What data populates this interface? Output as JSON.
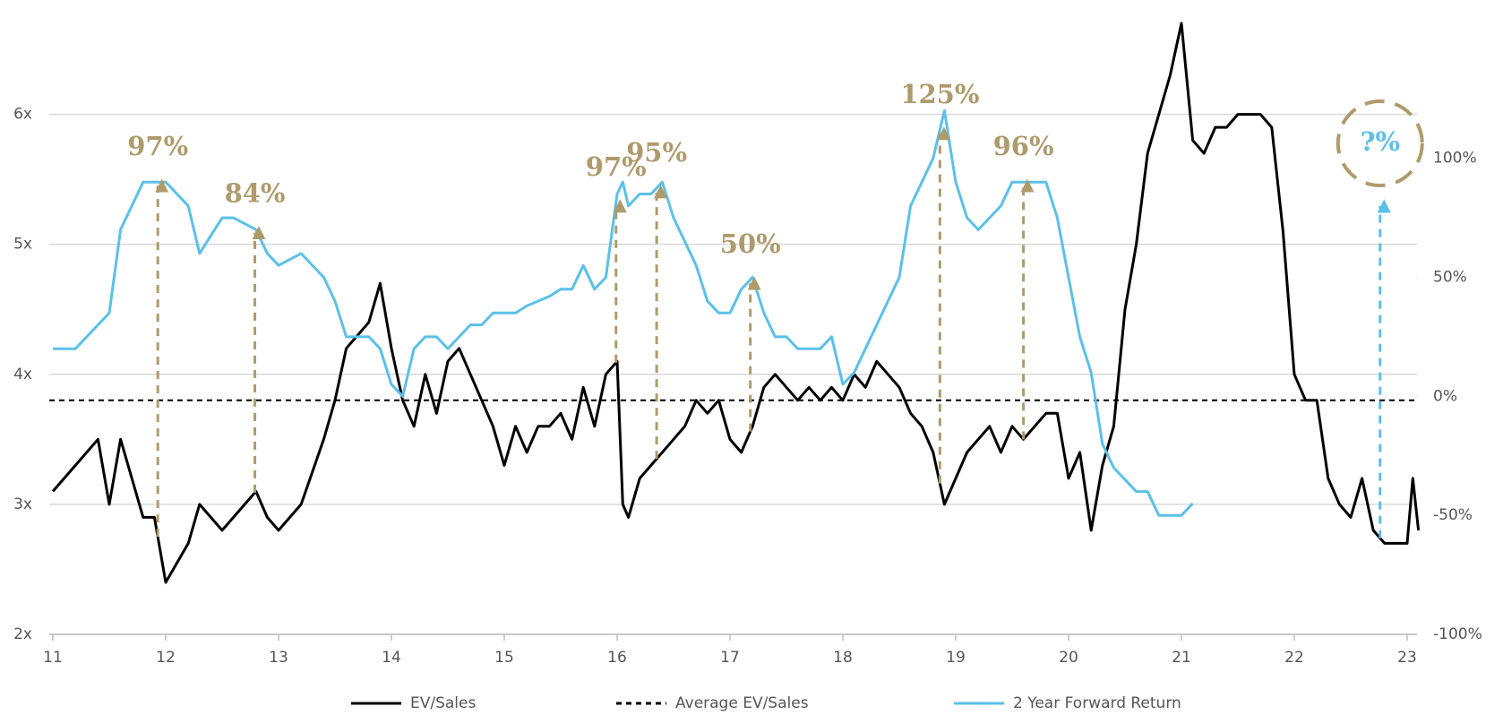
{
  "chart_data": {
    "type": "line",
    "x": [
      11.0,
      11.2,
      11.4,
      11.5,
      11.6,
      11.8,
      11.9,
      12.0,
      12.2,
      12.3,
      12.5,
      12.6,
      12.8,
      12.9,
      13.0,
      13.2,
      13.4,
      13.5,
      13.6,
      13.8,
      13.9,
      14.0,
      14.1,
      14.2,
      14.3,
      14.4,
      14.5,
      14.6,
      14.7,
      14.8,
      14.9,
      15.0,
      15.1,
      15.2,
      15.3,
      15.4,
      15.5,
      15.6,
      15.7,
      15.8,
      15.9,
      16.0,
      16.05,
      16.1,
      16.2,
      16.3,
      16.4,
      16.5,
      16.6,
      16.7,
      16.8,
      16.9,
      17.0,
      17.1,
      17.2,
      17.3,
      17.4,
      17.5,
      17.6,
      17.7,
      17.8,
      17.9,
      18.0,
      18.1,
      18.2,
      18.3,
      18.4,
      18.5,
      18.6,
      18.7,
      18.8,
      18.9,
      19.0,
      19.1,
      19.2,
      19.3,
      19.4,
      19.5,
      19.6,
      19.7,
      19.8,
      19.9,
      20.0,
      20.1,
      20.2,
      20.3,
      20.4,
      20.5,
      20.6,
      20.7,
      20.8,
      20.9,
      21.0,
      21.1,
      21.2,
      21.3,
      21.4,
      21.5,
      21.6,
      21.7,
      21.8,
      21.9,
      22.0,
      22.1,
      22.2,
      22.3,
      22.4,
      22.5,
      22.6,
      22.7,
      22.8,
      22.9,
      23.0,
      23.05,
      23.1
    ],
    "series": [
      {
        "name": "EV/Sales",
        "color": "#000000",
        "axis": "y",
        "values": [
          3.1,
          3.3,
          3.5,
          3.0,
          3.5,
          2.9,
          2.9,
          2.4,
          2.7,
          3.0,
          2.8,
          2.9,
          3.1,
          2.9,
          2.8,
          3.0,
          3.5,
          3.8,
          4.2,
          4.4,
          4.7,
          4.2,
          3.8,
          3.6,
          4.0,
          3.7,
          4.1,
          4.2,
          4.0,
          3.8,
          3.6,
          3.3,
          3.6,
          3.4,
          3.6,
          3.6,
          3.7,
          3.5,
          3.9,
          3.6,
          4.0,
          4.1,
          3.0,
          2.9,
          3.2,
          3.3,
          3.4,
          3.5,
          3.6,
          3.8,
          3.7,
          3.8,
          3.5,
          3.4,
          3.6,
          3.9,
          4.0,
          3.9,
          3.8,
          3.9,
          3.8,
          3.9,
          3.8,
          4.0,
          3.9,
          4.1,
          4.0,
          3.9,
          3.7,
          3.6,
          3.4,
          3.0,
          3.2,
          3.4,
          3.5,
          3.6,
          3.4,
          3.6,
          3.5,
          3.6,
          3.7,
          3.7,
          3.2,
          3.4,
          2.8,
          3.3,
          3.6,
          4.5,
          5.0,
          5.7,
          6.0,
          6.3,
          6.7,
          5.8,
          5.7,
          5.9,
          5.9,
          6.0,
          6.0,
          6.0,
          5.9,
          5.1,
          4.0,
          3.8,
          3.8,
          3.2,
          3.0,
          2.9,
          3.2,
          2.8,
          2.7,
          2.7,
          2.7,
          3.2,
          2.8
        ]
      },
      {
        "name": "2 Year Forward Return",
        "color": "#5bc0e8",
        "axis": "y2",
        "values": [
          20,
          20,
          30,
          35,
          70,
          90,
          90,
          90,
          80,
          60,
          75,
          75,
          70,
          60,
          55,
          60,
          50,
          40,
          25,
          25,
          20,
          5,
          0,
          20,
          25,
          25,
          20,
          25,
          30,
          30,
          35,
          35,
          35,
          38,
          40,
          42,
          45,
          45,
          55,
          45,
          50,
          85,
          90,
          80,
          85,
          85,
          90,
          75,
          65,
          55,
          40,
          35,
          35,
          45,
          50,
          35,
          25,
          25,
          20,
          20,
          20,
          25,
          5,
          10,
          20,
          30,
          40,
          50,
          80,
          90,
          100,
          120,
          90,
          75,
          70,
          75,
          80,
          90,
          90,
          90,
          90,
          75,
          50,
          25,
          10,
          -20,
          -30,
          -35,
          -40,
          -40,
          -50,
          -50,
          -50,
          -45,
          null,
          null,
          null,
          null,
          null,
          null,
          null,
          null,
          null,
          null,
          null,
          null,
          null,
          null,
          null,
          null,
          null,
          null,
          null,
          null,
          null
        ]
      }
    ],
    "reference_lines": [
      {
        "name": "Average EV/Sales",
        "value": 3.8,
        "color": "#000000",
        "dashed": true
      }
    ],
    "annotations": [
      {
        "label": "97%",
        "x": 11.93,
        "color": "#ae9b6c"
      },
      {
        "label": "84%",
        "x": 12.79,
        "color": "#ae9b6c"
      },
      {
        "label": "97%",
        "x": 15.99,
        "color": "#ae9b6c"
      },
      {
        "label": "95%",
        "x": 16.35,
        "color": "#ae9b6c"
      },
      {
        "label": "50%",
        "x": 17.18,
        "color": "#ae9b6c"
      },
      {
        "label": "125%",
        "x": 18.86,
        "color": "#ae9b6c"
      },
      {
        "label": "96%",
        "x": 19.6,
        "color": "#ae9b6c"
      },
      {
        "label": "?%",
        "x": 22.76,
        "color": "#5bc0e8",
        "circled": true
      }
    ],
    "xlim": [
      10.97,
      23.1
    ],
    "xticks": [
      11,
      12,
      13,
      14,
      15,
      16,
      17,
      18,
      19,
      20,
      21,
      22,
      23
    ],
    "ylim": [
      2,
      6.7
    ],
    "yticks": [
      {
        "value": 2,
        "label": "2x"
      },
      {
        "value": 3,
        "label": "3x"
      },
      {
        "value": 4,
        "label": "4x"
      },
      {
        "value": 5,
        "label": "5x"
      },
      {
        "value": 6,
        "label": "6x"
      }
    ],
    "y2lim": [
      -100,
      156.7
    ],
    "y2ticks": [
      {
        "value": -100,
        "label": "-100%"
      },
      {
        "value": -50,
        "label": "-50%"
      },
      {
        "value": 0,
        "label": "0%"
      },
      {
        "value": 50,
        "label": "50%"
      },
      {
        "value": 100,
        "label": "100%"
      }
    ],
    "grid": true,
    "legend": "bottom"
  }
}
